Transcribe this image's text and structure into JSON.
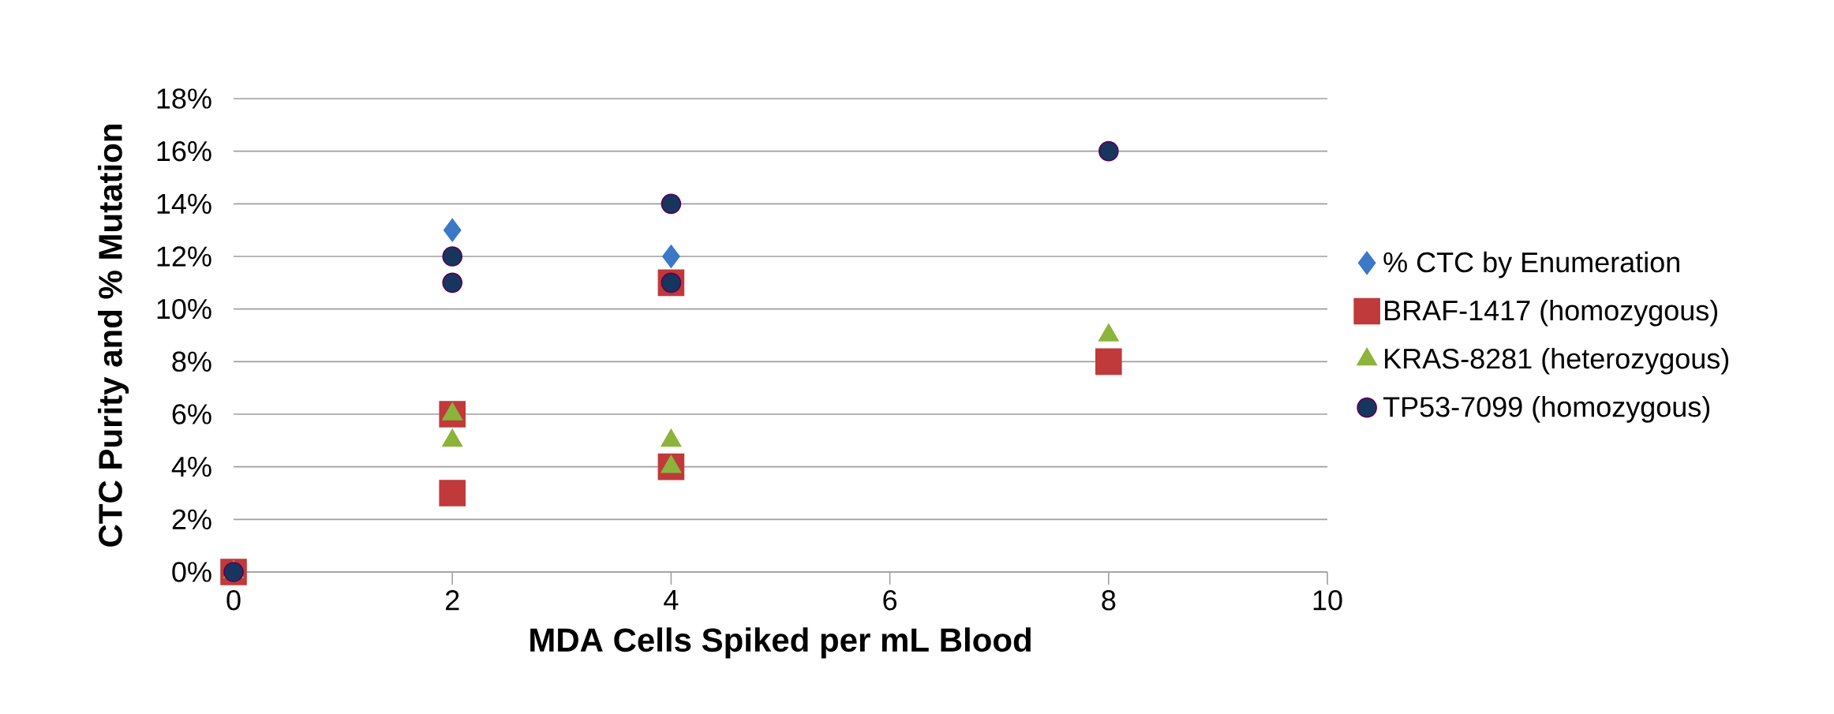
{
  "chart_data": {
    "type": "scatter",
    "xlabel": "MDA Cells Spiked per mL Blood",
    "ylabel": "CTC Purity and % Mutation",
    "xlim": [
      0,
      10
    ],
    "xticks": [
      0,
      2,
      4,
      6,
      8,
      10
    ],
    "ylim": [
      0,
      18
    ],
    "yticks": [
      {
        "value": 0,
        "label": "0%"
      },
      {
        "value": 2,
        "label": "2%"
      },
      {
        "value": 4,
        "label": "4%"
      },
      {
        "value": 6,
        "label": "6%"
      },
      {
        "value": 8,
        "label": "8%"
      },
      {
        "value": 10,
        "label": "10%"
      },
      {
        "value": 12,
        "label": "12%"
      },
      {
        "value": 14,
        "label": "14%"
      },
      {
        "value": 16,
        "label": "16%"
      },
      {
        "value": 18,
        "label": "18%"
      }
    ],
    "grid": "y",
    "legend": "right",
    "series": [
      {
        "name": "% CTC by Enumeration",
        "color": "#3b78c5",
        "marker": "diamond",
        "x": [
          2,
          4
        ],
        "values": [
          13,
          12
        ]
      },
      {
        "name": "BRAF-1417 (homozygous)",
        "color": "#c0393b",
        "marker": "square",
        "x": [
          0,
          2,
          2,
          4,
          4,
          8
        ],
        "values": [
          0,
          6,
          3,
          11,
          4,
          8
        ]
      },
      {
        "name": "KRAS-8281 (heterozygous)",
        "color": "#8cb43c",
        "marker": "triangle",
        "x": [
          0,
          2,
          2,
          4,
          4,
          8
        ],
        "values": [
          0,
          6,
          5,
          5,
          4,
          9
        ]
      },
      {
        "name": "TP53-7099 (homozygous)",
        "color": "#17365d",
        "marker": "circle",
        "x": [
          0,
          2,
          2,
          4,
          4,
          8
        ],
        "values": [
          0,
          12,
          11,
          14,
          11,
          16
        ]
      }
    ]
  }
}
